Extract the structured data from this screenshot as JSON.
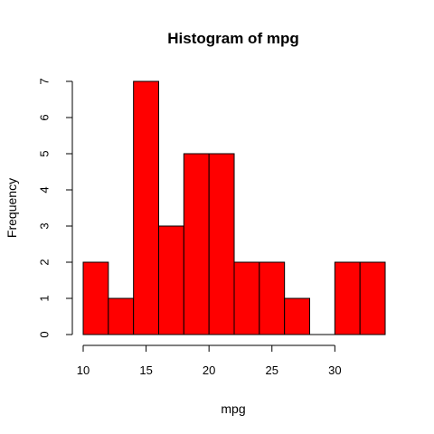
{
  "chart_data": {
    "type": "bar",
    "title": "Histogram of mpg",
    "xlabel": "mpg",
    "ylabel": "Frequency",
    "bins": [
      {
        "from": 10,
        "to": 12,
        "count": 2
      },
      {
        "from": 12,
        "to": 14,
        "count": 1
      },
      {
        "from": 14,
        "to": 16,
        "count": 7
      },
      {
        "from": 16,
        "to": 18,
        "count": 3
      },
      {
        "from": 18,
        "to": 20,
        "count": 5
      },
      {
        "from": 20,
        "to": 22,
        "count": 5
      },
      {
        "from": 22,
        "to": 24,
        "count": 2
      },
      {
        "from": 24,
        "to": 26,
        "count": 2
      },
      {
        "from": 26,
        "to": 28,
        "count": 1
      },
      {
        "from": 28,
        "to": 30,
        "count": 0
      },
      {
        "from": 30,
        "to": 32,
        "count": 2
      },
      {
        "from": 32,
        "to": 34,
        "count": 2
      }
    ],
    "xlim": [
      10,
      34
    ],
    "ylim": [
      0,
      7
    ],
    "x_ticks": [
      10,
      15,
      20,
      25,
      30
    ],
    "y_ticks": [
      0,
      1,
      2,
      3,
      4,
      5,
      6,
      7
    ],
    "bar_color": "#ff0000",
    "border_color": "#000000",
    "grid": false
  }
}
